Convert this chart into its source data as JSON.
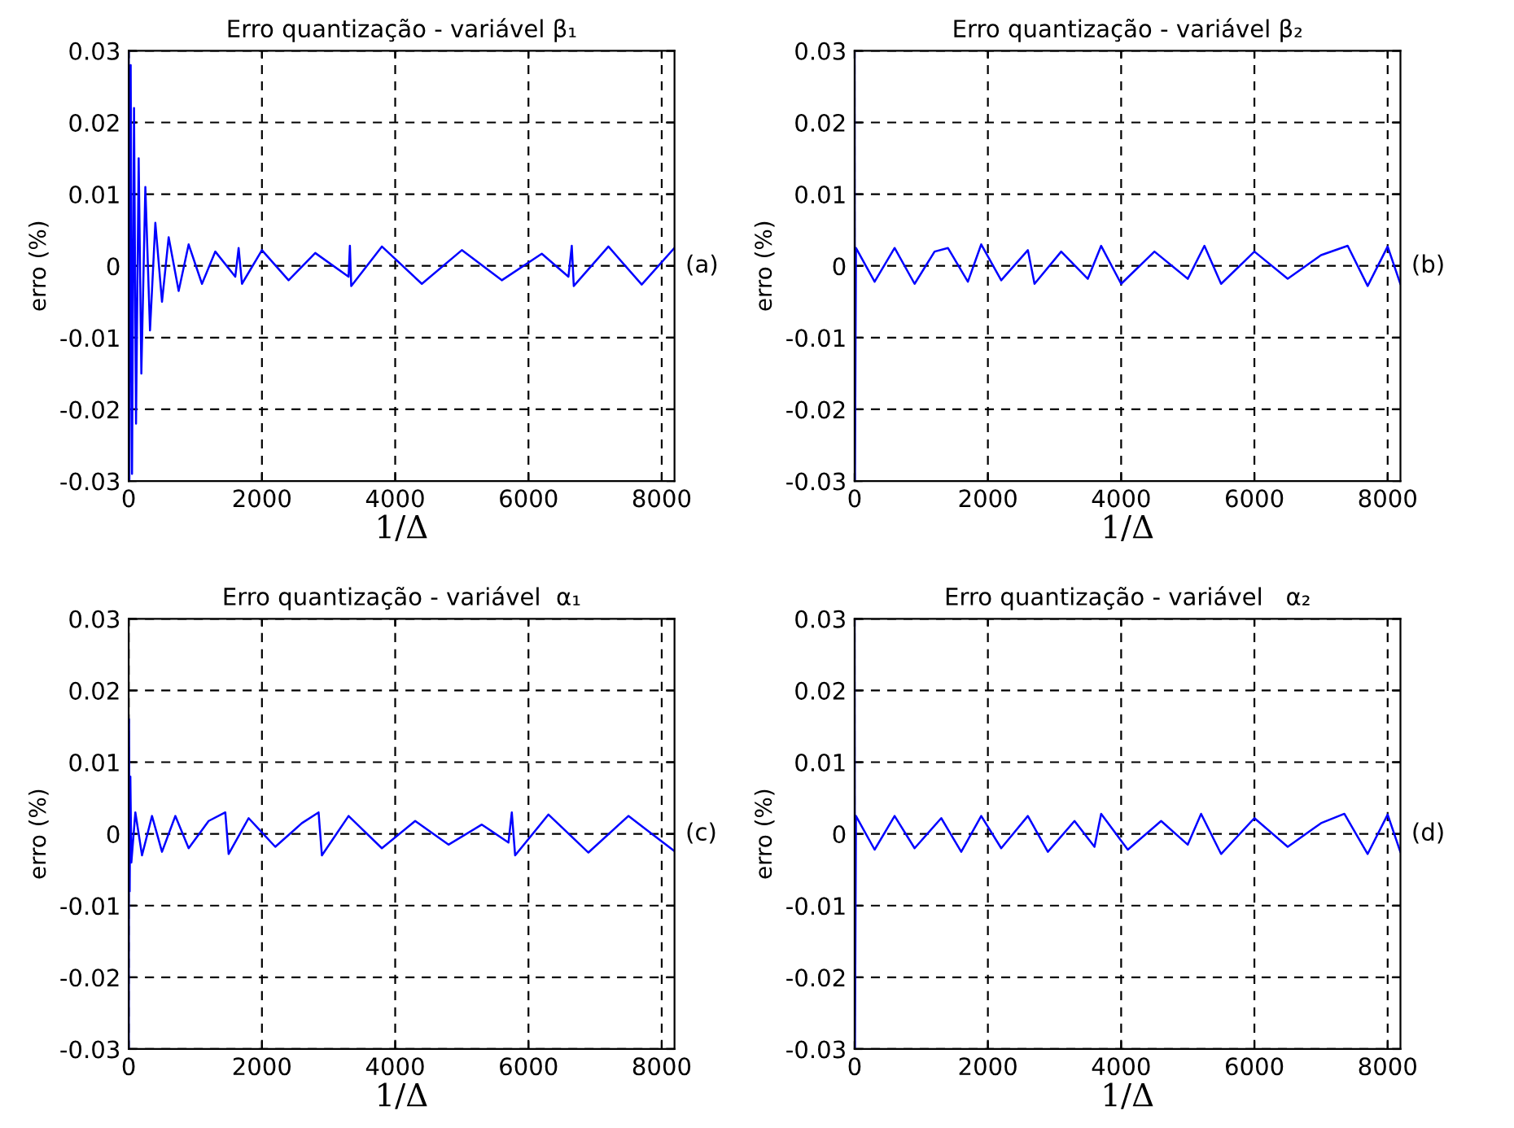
{
  "chart_data": [
    {
      "type": "line",
      "title": "Erro quantização - variável β₁",
      "xlabel": "1/Δ",
      "ylabel": "erro (%)",
      "annotations": [
        "(a)"
      ],
      "xlim": [
        0,
        8192
      ],
      "ylim": [
        -0.03,
        0.03
      ],
      "xticks": [
        0,
        2000,
        4000,
        6000,
        8000
      ],
      "yticks": [
        -0.03,
        -0.02,
        -0.01,
        0,
        0.01,
        0.02,
        0.03
      ],
      "grid": true,
      "line_style": "solid",
      "x": [
        0,
        10,
        30,
        50,
        80,
        110,
        150,
        190,
        250,
        320,
        400,
        500,
        600,
        750,
        900,
        1100,
        1300,
        1600,
        1650,
        1700,
        2000,
        2400,
        2800,
        3300,
        3320,
        3340,
        3800,
        4400,
        5000,
        5600,
        6200,
        6600,
        6650,
        6680,
        7200,
        7700,
        8190
      ],
      "series": [
        {
          "color": "#0000ff",
          "values": [
            0.03,
            -0.03,
            0.028,
            -0.029,
            0.022,
            -0.022,
            0.015,
            -0.015,
            0.011,
            -0.009,
            0.006,
            -0.005,
            0.004,
            -0.0035,
            0.003,
            -0.0025,
            0.002,
            -0.0015,
            0.0025,
            -0.0025,
            0.0022,
            -0.002,
            0.0018,
            -0.0015,
            0.0028,
            -0.0028,
            0.0027,
            -0.0025,
            0.0022,
            -0.002,
            0.0017,
            -0.0015,
            0.0028,
            -0.0028,
            0.0027,
            -0.0026,
            0.0025
          ]
        }
      ]
    },
    {
      "type": "line",
      "title": "Erro quantização - variável β₂",
      "xlabel": "1/Δ",
      "ylabel": "erro (%)",
      "annotations": [
        "(b)"
      ],
      "xlim": [
        0,
        8192
      ],
      "ylim": [
        -0.03,
        0.03
      ],
      "xticks": [
        0,
        2000,
        4000,
        6000,
        8000
      ],
      "yticks": [
        -0.03,
        -0.02,
        -0.01,
        0,
        0.01,
        0.02,
        0.03
      ],
      "grid": true,
      "line_style": "solid",
      "x": [
        0,
        5,
        20,
        300,
        600,
        900,
        1200,
        1400,
        1700,
        1900,
        2200,
        2600,
        2700,
        3100,
        3500,
        3700,
        4000,
        4500,
        5000,
        5250,
        5500,
        6000,
        6500,
        7000,
        7400,
        7700,
        8000,
        8190
      ],
      "series": [
        {
          "color": "#0000ff",
          "values": [
            0.03,
            -0.03,
            0.0025,
            -0.0022,
            0.0025,
            -0.0025,
            0.002,
            0.0025,
            -0.0022,
            0.003,
            -0.002,
            0.0022,
            -0.0025,
            0.002,
            -0.0018,
            0.0028,
            -0.0025,
            0.002,
            -0.0018,
            0.0028,
            -0.0025,
            0.002,
            -0.0018,
            0.0015,
            0.0028,
            -0.0028,
            0.0027,
            -0.0025
          ]
        }
      ]
    },
    {
      "type": "line",
      "title": "Erro quantização - variável  α₁",
      "xlabel": "1/Δ",
      "ylabel": "erro (%)",
      "annotations": [
        "(c)"
      ],
      "xlim": [
        0,
        8192
      ],
      "ylim": [
        -0.03,
        0.03
      ],
      "xticks": [
        0,
        2000,
        4000,
        6000,
        8000
      ],
      "yticks": [
        -0.03,
        -0.02,
        -0.01,
        0,
        0.01,
        0.02,
        0.03
      ],
      "grid": true,
      "line_style": "solid",
      "x": [
        0,
        5,
        15,
        25,
        40,
        100,
        200,
        350,
        500,
        700,
        900,
        1200,
        1450,
        1500,
        1800,
        2200,
        2600,
        2850,
        2900,
        3300,
        3800,
        4300,
        4800,
        5300,
        5700,
        5750,
        5800,
        6300,
        6900,
        7500,
        8190
      ],
      "series": [
        {
          "color": "#0000ff",
          "values": [
            -0.03,
            0.016,
            -0.008,
            0.008,
            -0.004,
            0.003,
            -0.003,
            0.0025,
            -0.0025,
            0.0025,
            -0.002,
            0.0018,
            0.003,
            -0.0028,
            0.0022,
            -0.0018,
            0.0015,
            0.003,
            -0.003,
            0.0025,
            -0.002,
            0.0018,
            -0.0015,
            0.0013,
            -0.0012,
            0.003,
            -0.003,
            0.0027,
            -0.0026,
            0.0025,
            -0.0024
          ]
        }
      ]
    },
    {
      "type": "line",
      "title": "Erro quantização - variável   α₂",
      "xlabel": "1/Δ",
      "ylabel": "erro (%)",
      "annotations": [
        "(d)"
      ],
      "xlim": [
        0,
        8192
      ],
      "ylim": [
        -0.03,
        0.03
      ],
      "xticks": [
        0,
        2000,
        4000,
        6000,
        8000
      ],
      "yticks": [
        -0.03,
        -0.02,
        -0.01,
        0,
        0.01,
        0.02,
        0.03
      ],
      "grid": true,
      "line_style": "solid",
      "x": [
        0,
        5,
        20,
        300,
        600,
        900,
        1300,
        1600,
        1900,
        2200,
        2600,
        2900,
        3300,
        3600,
        3700,
        4100,
        4600,
        5000,
        5200,
        5500,
        6000,
        6500,
        7000,
        7350,
        7700,
        8000,
        8190
      ],
      "series": [
        {
          "color": "#0000ff",
          "values": [
            0.03,
            -0.03,
            0.0025,
            -0.0022,
            0.0025,
            -0.002,
            0.0022,
            -0.0025,
            0.0025,
            -0.002,
            0.0025,
            -0.0025,
            0.0018,
            -0.0018,
            0.0028,
            -0.0022,
            0.0018,
            -0.0015,
            0.0028,
            -0.0028,
            0.0022,
            -0.0018,
            0.0015,
            0.0028,
            -0.0028,
            0.0027,
            -0.0025
          ]
        }
      ]
    }
  ]
}
